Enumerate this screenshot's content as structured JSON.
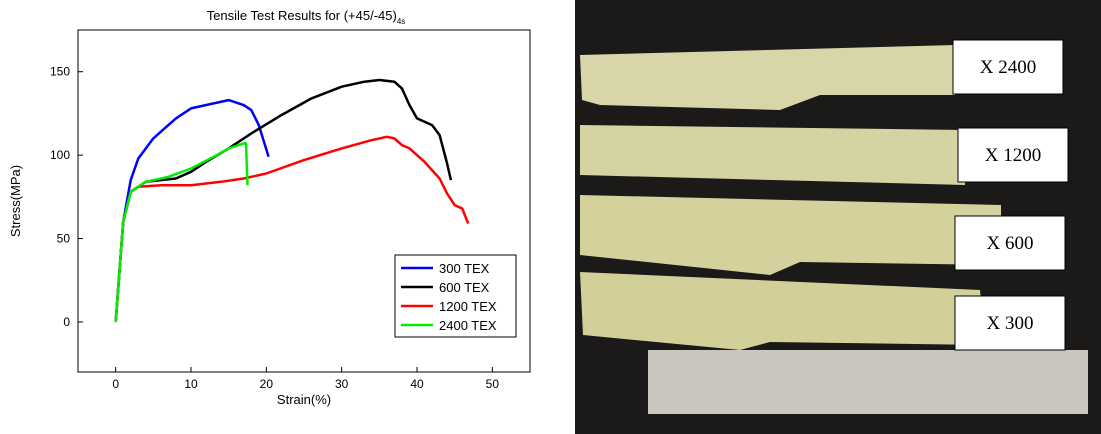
{
  "chart_data": {
    "type": "line",
    "title": "Tensile Test Results for (+45/-45)",
    "title_subscript": "4s",
    "x_label": "Strain(%)",
    "y_label": "Stress(MPa)",
    "xlim": [
      -5,
      55
    ],
    "xticks": [
      0,
      10,
      20,
      30,
      40,
      50
    ],
    "ylim": [
      -30,
      175
    ],
    "yticks": [
      0,
      50,
      100,
      150
    ],
    "legend": "lower right",
    "series": [
      {
        "name": "300 TEX",
        "color": "#0000ff",
        "x": [
          0,
          0.5,
          1,
          2,
          3,
          5,
          8,
          10,
          13,
          15,
          17,
          18,
          19,
          20.3
        ],
        "values": [
          0,
          30,
          60,
          85,
          98,
          110,
          122,
          128,
          131,
          133,
          130,
          127,
          118,
          99
        ]
      },
      {
        "name": "600 TEX",
        "color": "#000000",
        "x": [
          0,
          1,
          2,
          4,
          6,
          8,
          10,
          12,
          15,
          18,
          22,
          26,
          30,
          33,
          35,
          37,
          38,
          39,
          40,
          42,
          43,
          44,
          44.5
        ],
        "values": [
          0,
          60,
          78,
          84,
          85,
          86,
          90,
          96,
          104,
          113,
          124,
          134,
          141,
          144,
          145,
          144,
          140,
          130,
          122,
          118,
          112,
          95,
          85
        ]
      },
      {
        "name": "1200 TEX",
        "color": "#ff0000",
        "x": [
          0,
          1,
          2,
          3,
          6,
          10,
          14,
          17,
          20,
          25,
          30,
          34,
          36,
          37,
          38,
          39,
          41,
          43,
          44,
          45,
          46,
          46.8
        ],
        "values": [
          0,
          60,
          78,
          81,
          82,
          82,
          84,
          86,
          89,
          97,
          104,
          109,
          111,
          110,
          106,
          104,
          96,
          86,
          77,
          70,
          68,
          59
        ]
      },
      {
        "name": "2400 TEX",
        "color": "#00ee00",
        "x": [
          0,
          1,
          2,
          4,
          7,
          10,
          13,
          15,
          17,
          17.3,
          17.5
        ],
        "values": [
          0,
          60,
          78,
          84,
          87,
          92,
          99,
          104,
          107,
          107,
          82
        ]
      }
    ]
  },
  "photo": {
    "labels": [
      "X 2400",
      "X 1200",
      "X 600",
      "X 300"
    ]
  }
}
